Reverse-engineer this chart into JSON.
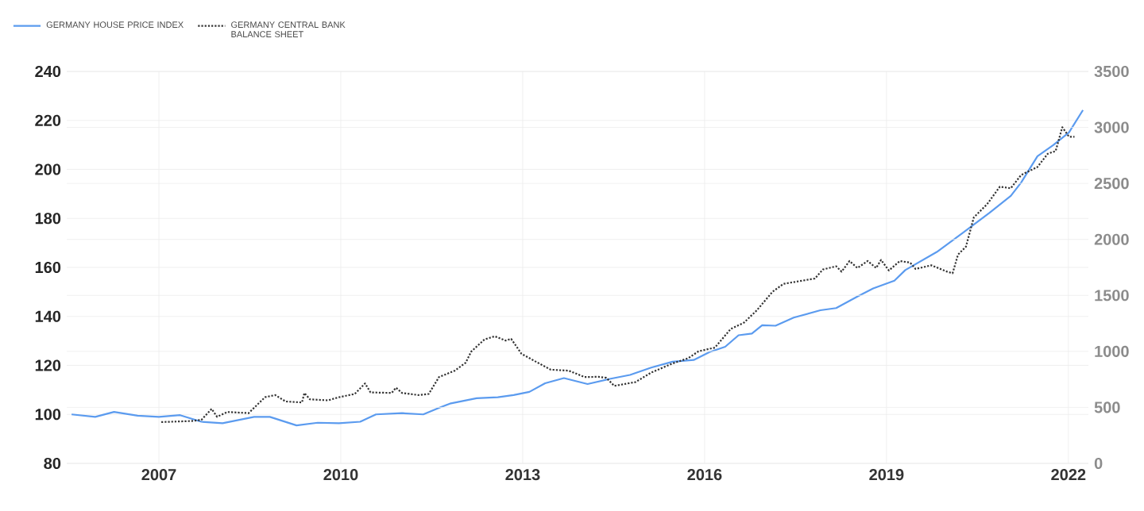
{
  "chart_data": {
    "type": "line",
    "xlim": [
      2005.48,
      2022.33
    ],
    "xticks": [
      2007,
      2010,
      2013,
      2016,
      2019,
      2022
    ],
    "ylim": [
      80,
      240
    ],
    "yticks": [
      80,
      100,
      120,
      140,
      160,
      180,
      200,
      220,
      240
    ],
    "y2lim": [
      0,
      3500
    ],
    "y2ticks": [
      0,
      500,
      1000,
      1500,
      2000,
      2500,
      3000,
      3500
    ],
    "grid": true,
    "legend": "top left",
    "marker": "none",
    "series": [
      {
        "name": "GERMANY HOUSE PRICE INDEX",
        "color": "#5b9bef",
        "line_style": "solid",
        "x": [
          2005.56,
          2005.95,
          2006.26,
          2006.65,
          2007.0,
          2007.35,
          2007.7,
          2008.05,
          2008.57,
          2008.83,
          2009.27,
          2009.62,
          2009.97,
          2010.32,
          2010.58,
          2011.01,
          2011.36,
          2011.62,
          2011.8,
          2012.24,
          2012.59,
          2012.85,
          2013.11,
          2013.37,
          2013.68,
          2014.07,
          2014.42,
          2014.77,
          2015.12,
          2015.47,
          2015.82,
          2016.08,
          2016.34,
          2016.56,
          2016.78,
          2016.95,
          2017.17,
          2017.47,
          2017.91,
          2018.17,
          2018.52,
          2018.78,
          2019.13,
          2019.31,
          2019.83,
          2020.26,
          2020.7,
          2021.05,
          2021.22,
          2021.49,
          2021.75,
          2022.01,
          2022.24
        ],
        "values": [
          100,
          99,
          101,
          99.5,
          99,
          99.7,
          97,
          96.4,
          99,
          99,
          95.5,
          96.6,
          96.4,
          97,
          100,
          100.5,
          100,
          102.7,
          104.4,
          106.6,
          107,
          107.9,
          109.2,
          112.7,
          114.8,
          112.4,
          114.4,
          116.1,
          119.1,
          121.5,
          122.2,
          125.4,
          127.6,
          132.3,
          133,
          136.4,
          136.2,
          139.5,
          142.5,
          143.4,
          148.1,
          151.4,
          154.6,
          158.9,
          166.3,
          174.1,
          182.3,
          189.2,
          194.6,
          205.4,
          209.9,
          215.1,
          224.2
        ]
      },
      {
        "name": "GERMANY CENTRAL BANK BALANCE SHEET",
        "color": "#333333",
        "line_style": "dotted",
        "axis": "y2",
        "x": [
          2007.04,
          2007.52,
          2007.7,
          2007.87,
          2007.96,
          2008.13,
          2008.48,
          2008.75,
          2008.92,
          2009.09,
          2009.36,
          2009.4,
          2009.49,
          2009.79,
          2009.97,
          2010.23,
          2010.4,
          2010.49,
          2010.84,
          2010.91,
          2011.01,
          2011.28,
          2011.45,
          2011.62,
          2011.88,
          2012.06,
          2012.15,
          2012.37,
          2012.54,
          2012.72,
          2012.81,
          2012.98,
          2013.2,
          2013.46,
          2013.76,
          2014.02,
          2014.25,
          2014.38,
          2014.51,
          2014.86,
          2015.12,
          2015.47,
          2015.73,
          2015.9,
          2016.17,
          2016.43,
          2016.65,
          2016.86,
          2017.12,
          2017.3,
          2017.56,
          2017.82,
          2017.95,
          2018.17,
          2018.26,
          2018.39,
          2018.52,
          2018.69,
          2018.83,
          2018.91,
          2019.04,
          2019.22,
          2019.39,
          2019.48,
          2019.74,
          2020.0,
          2020.09,
          2020.18,
          2020.31,
          2020.44,
          2020.66,
          2020.87,
          2021.05,
          2021.22,
          2021.49,
          2021.66,
          2021.79,
          2021.9,
          2022.01,
          2022.1
        ],
        "values": [
          369,
          378,
          388,
          487,
          416,
          459,
          449,
          591,
          610,
          553,
          544,
          629,
          572,
          563,
          591,
          620,
          714,
          634,
          629,
          676,
          629,
          610,
          620,
          771,
          828,
          899,
          998,
          1107,
          1135,
          1097,
          1112,
          979,
          913,
          837,
          828,
          771,
          773,
          764,
          692,
          726,
          811,
          892,
          939,
          1001,
          1034,
          1200,
          1257,
          1366,
          1532,
          1603,
          1627,
          1651,
          1731,
          1760,
          1712,
          1807,
          1745,
          1807,
          1745,
          1817,
          1722,
          1807,
          1793,
          1736,
          1769,
          1712,
          1698,
          1864,
          1935,
          2196,
          2315,
          2471,
          2457,
          2575,
          2647,
          2765,
          2789,
          3002,
          2917,
          2917
        ]
      }
    ]
  }
}
